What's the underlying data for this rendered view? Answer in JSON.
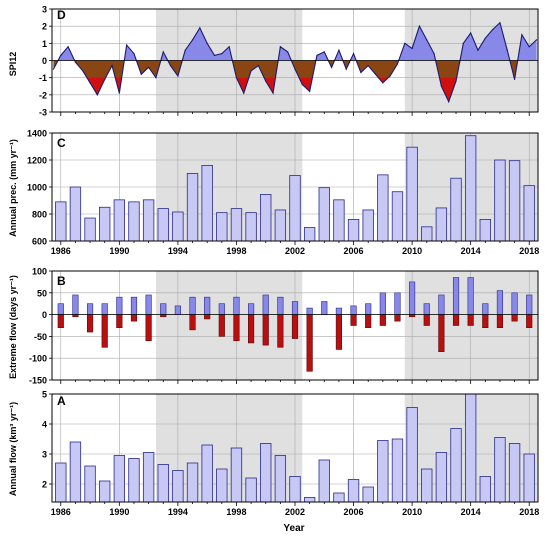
{
  "colors": {
    "bar_fill": "#c8c8f5",
    "bar_stroke": "#2a2a8a",
    "shade": "#e0e0e0",
    "spi_pos": "#8888e8",
    "spi_neg": "#d01010",
    "spi_neg_mild": "#8b4513",
    "extreme_pos": "#8888e8",
    "extreme_neg": "#b81010",
    "line": "#1a1a70"
  },
  "xlabel": "Year",
  "shaded_periods": [
    [
      1992.5,
      2002.5
    ],
    [
      2009.5,
      2018.6
    ]
  ],
  "chart_data": [
    {
      "panel": "D",
      "type": "area",
      "ylabel": "SPI12",
      "ylim": [
        -3,
        3
      ],
      "yticks": [
        -3,
        -2,
        -1,
        0,
        1,
        2,
        3
      ],
      "xlim": [
        1985.4,
        2018.6
      ],
      "xticks": [
        1986,
        1990,
        1994,
        1998,
        2002,
        2006,
        2010,
        2014,
        2018
      ],
      "x": [
        1985.5,
        1986.0,
        1986.5,
        1987.0,
        1987.5,
        1988.0,
        1988.5,
        1989.0,
        1989.5,
        1990.0,
        1990.5,
        1991.0,
        1991.5,
        1992.0,
        1992.5,
        1993.0,
        1993.5,
        1994.0,
        1994.5,
        1995.0,
        1995.5,
        1996.0,
        1996.5,
        1997.0,
        1997.5,
        1998.0,
        1998.5,
        1999.0,
        1999.5,
        2000.0,
        2000.5,
        2001.0,
        2001.5,
        2002.0,
        2002.5,
        2003.0,
        2003.5,
        2004.0,
        2004.5,
        2005.0,
        2005.5,
        2006.0,
        2006.5,
        2007.0,
        2007.5,
        2008.0,
        2008.5,
        2009.0,
        2009.5,
        2010.0,
        2010.5,
        2011.0,
        2011.5,
        2012.0,
        2012.5,
        2013.0,
        2013.5,
        2014.0,
        2014.5,
        2015.0,
        2015.5,
        2016.0,
        2016.5,
        2017.0,
        2017.5,
        2018.0,
        2018.5
      ],
      "values": [
        -0.5,
        0.3,
        0.8,
        -0.1,
        -0.6,
        -1.3,
        -2.0,
        -1.1,
        -0.3,
        -1.9,
        0.9,
        0.4,
        -0.8,
        -0.4,
        -1.0,
        0.5,
        -0.3,
        -0.9,
        0.6,
        1.2,
        1.9,
        1.0,
        0.3,
        0.4,
        0.8,
        -1.0,
        -1.9,
        -0.6,
        -0.3,
        -1.2,
        -1.9,
        0.8,
        0.5,
        -0.5,
        -1.4,
        -1.8,
        0.3,
        0.5,
        -0.4,
        0.6,
        -0.5,
        0.4,
        -0.7,
        -0.3,
        -0.8,
        -1.3,
        -0.9,
        -0.2,
        1.0,
        0.7,
        2.0,
        1.2,
        0.4,
        -1.5,
        -2.4,
        -1.2,
        1.0,
        1.6,
        0.6,
        1.3,
        1.8,
        2.2,
        0.6,
        -1.1,
        1.5,
        0.8,
        1.2
      ]
    },
    {
      "panel": "C",
      "type": "bar",
      "ylabel": "Annual prec. (mm yr⁻¹)",
      "ylim": [
        600,
        1400
      ],
      "yticks": [
        600,
        800,
        1000,
        1200,
        1400
      ],
      "categories": [
        1986,
        1987,
        1988,
        1989,
        1990,
        1991,
        1992,
        1993,
        1994,
        1995,
        1996,
        1997,
        1998,
        1999,
        2000,
        2001,
        2002,
        2003,
        2004,
        2005,
        2006,
        2007,
        2008,
        2009,
        2010,
        2011,
        2012,
        2013,
        2014,
        2015,
        2016,
        2017,
        2018
      ],
      "values": [
        890,
        1000,
        770,
        850,
        905,
        890,
        905,
        840,
        815,
        1100,
        1160,
        810,
        840,
        810,
        945,
        830,
        1085,
        700,
        995,
        905,
        760,
        830,
        1090,
        965,
        1295,
        705,
        845,
        1065,
        1380,
        760,
        1200,
        1195,
        1010
      ]
    },
    {
      "panel": "B",
      "type": "bar",
      "ylabel": "Extreme flow (days yr⁻¹)",
      "ylim": [
        -150,
        100
      ],
      "yticks": [
        -150,
        -100,
        -50,
        0,
        50,
        100
      ],
      "categories": [
        1986,
        1987,
        1988,
        1989,
        1990,
        1991,
        1992,
        1993,
        1994,
        1995,
        1996,
        1997,
        1998,
        1999,
        2000,
        2001,
        2002,
        2003,
        2004,
        2005,
        2006,
        2007,
        2008,
        2009,
        2010,
        2011,
        2012,
        2013,
        2014,
        2015,
        2016,
        2017,
        2018
      ],
      "series": [
        {
          "values": [
            25,
            45,
            25,
            25,
            40,
            40,
            45,
            25,
            20,
            40,
            40,
            25,
            40,
            25,
            45,
            40,
            30,
            15,
            30,
            15,
            20,
            25,
            50,
            50,
            75,
            25,
            45,
            85,
            85,
            25,
            55,
            50,
            45
          ]
        },
        {
          "values": [
            -30,
            -5,
            -40,
            -75,
            -30,
            -15,
            -60,
            -5,
            0,
            -35,
            -10,
            -50,
            -60,
            -65,
            -70,
            -75,
            -55,
            -130,
            0,
            -80,
            -25,
            -30,
            -25,
            -15,
            -5,
            -25,
            -85,
            -25,
            -25,
            -30,
            -30,
            -15,
            -30
          ]
        }
      ]
    },
    {
      "panel": "A",
      "type": "bar",
      "ylabel": "Annual flow (km³ yr⁻¹)",
      "ylim": [
        1.4,
        5
      ],
      "yticks": [
        2,
        3,
        4,
        5
      ],
      "categories": [
        1986,
        1987,
        1988,
        1989,
        1990,
        1991,
        1992,
        1993,
        1994,
        1995,
        1996,
        1997,
        1998,
        1999,
        2000,
        2001,
        2002,
        2003,
        2004,
        2005,
        2006,
        2007,
        2008,
        2009,
        2010,
        2011,
        2012,
        2013,
        2014,
        2015,
        2016,
        2017,
        2018
      ],
      "values": [
        2.7,
        3.4,
        2.6,
        2.1,
        2.95,
        2.85,
        3.05,
        2.65,
        2.45,
        2.7,
        3.3,
        2.5,
        3.2,
        2.2,
        3.35,
        2.95,
        2.25,
        1.55,
        2.8,
        1.7,
        2.15,
        1.9,
        3.45,
        3.5,
        4.55,
        2.5,
        3.05,
        3.85,
        5.0,
        2.25,
        3.55,
        3.35,
        3.0
      ]
    }
  ]
}
